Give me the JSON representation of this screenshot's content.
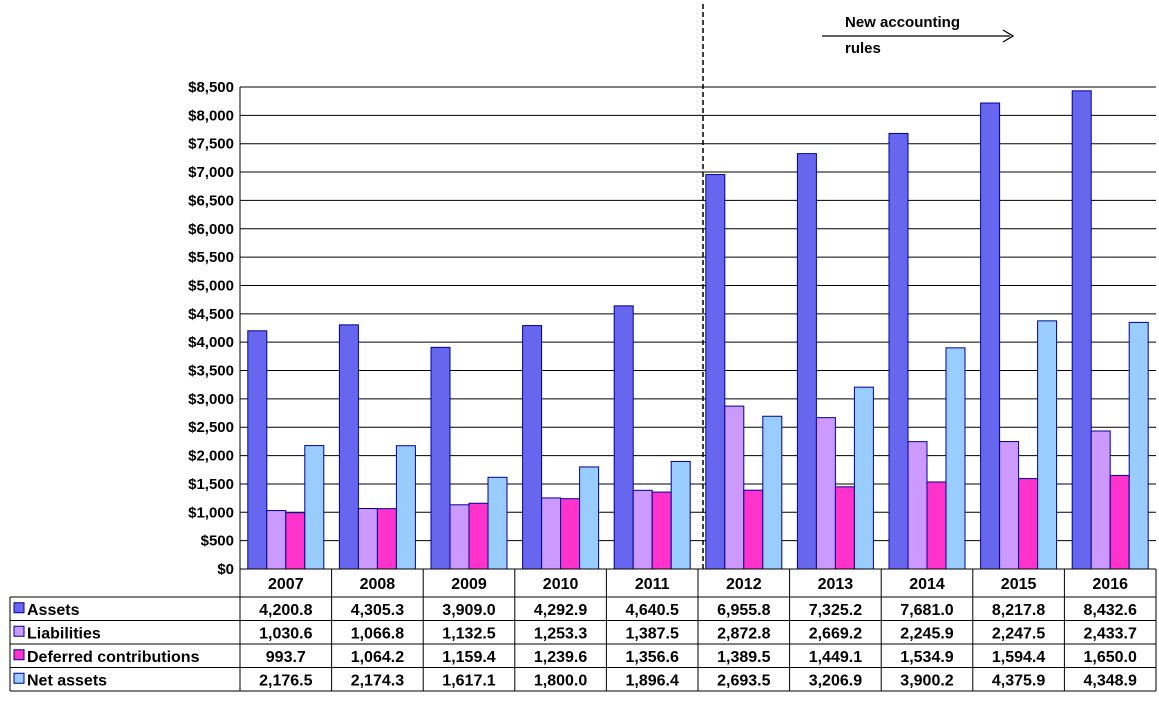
{
  "chart_data": {
    "type": "bar",
    "categories": [
      "2007",
      "2008",
      "2009",
      "2010",
      "2011",
      "2012",
      "2013",
      "2014",
      "2015",
      "2016"
    ],
    "series": [
      {
        "name": "Assets",
        "color": "#6666ee",
        "values": [
          4200.8,
          4305.3,
          3909.0,
          4292.9,
          4640.5,
          6955.8,
          7325.2,
          7681.0,
          8217.8,
          8432.6
        ],
        "labels": [
          "4,200.8",
          "4,305.3",
          "3,909.0",
          "4,292.9",
          "4,640.5",
          "6,955.8",
          "7,325.2",
          "7,681.0",
          "8,217.8",
          "8,432.6"
        ]
      },
      {
        "name": "Liabilities",
        "color": "#cc99ff",
        "values": [
          1030.6,
          1066.8,
          1132.5,
          1253.3,
          1387.5,
          2872.8,
          2669.2,
          2245.9,
          2247.5,
          2433.7
        ],
        "labels": [
          "1,030.6",
          "1,066.8",
          "1,132.5",
          "1,253.3",
          "1,387.5",
          "2,872.8",
          "2,669.2",
          "2,245.9",
          "2,247.5",
          "2,433.7"
        ]
      },
      {
        "name": "Deferred contributions",
        "color": "#ff33cc",
        "values": [
          993.7,
          1064.2,
          1159.4,
          1239.6,
          1356.6,
          1389.5,
          1449.1,
          1534.9,
          1594.4,
          1650.0
        ],
        "labels": [
          "993.7",
          "1,064.2",
          "1,159.4",
          "1,239.6",
          "1,356.6",
          "1,389.5",
          "1,449.1",
          "1,534.9",
          "1,594.4",
          "1,650.0"
        ]
      },
      {
        "name": "Net assets",
        "color": "#99ccff",
        "values": [
          2176.5,
          2174.3,
          1617.1,
          1800.0,
          1896.4,
          2693.5,
          3206.9,
          3900.2,
          4375.9,
          4348.9
        ],
        "labels": [
          "2,176.5",
          "2,174.3",
          "1,617.1",
          "1,800.0",
          "1,896.4",
          "2,693.5",
          "3,206.9",
          "3,900.2",
          "4,375.9",
          "4,348.9"
        ]
      }
    ],
    "ylim": [
      0,
      8500
    ],
    "yticks": [
      "$0",
      "$500",
      "$1,000",
      "$1,500",
      "$2,000",
      "$2,500",
      "$3,000",
      "$3,500",
      "$4,000",
      "$4,500",
      "$5,000",
      "$5,500",
      "$6,000",
      "$6,500",
      "$7,000",
      "$7,500",
      "$8,000",
      "$8,500"
    ],
    "grid": true,
    "legend": "data-table",
    "annotation": {
      "text_line1": "New accounting",
      "text_line2": "rules",
      "after_category": "2011"
    }
  }
}
